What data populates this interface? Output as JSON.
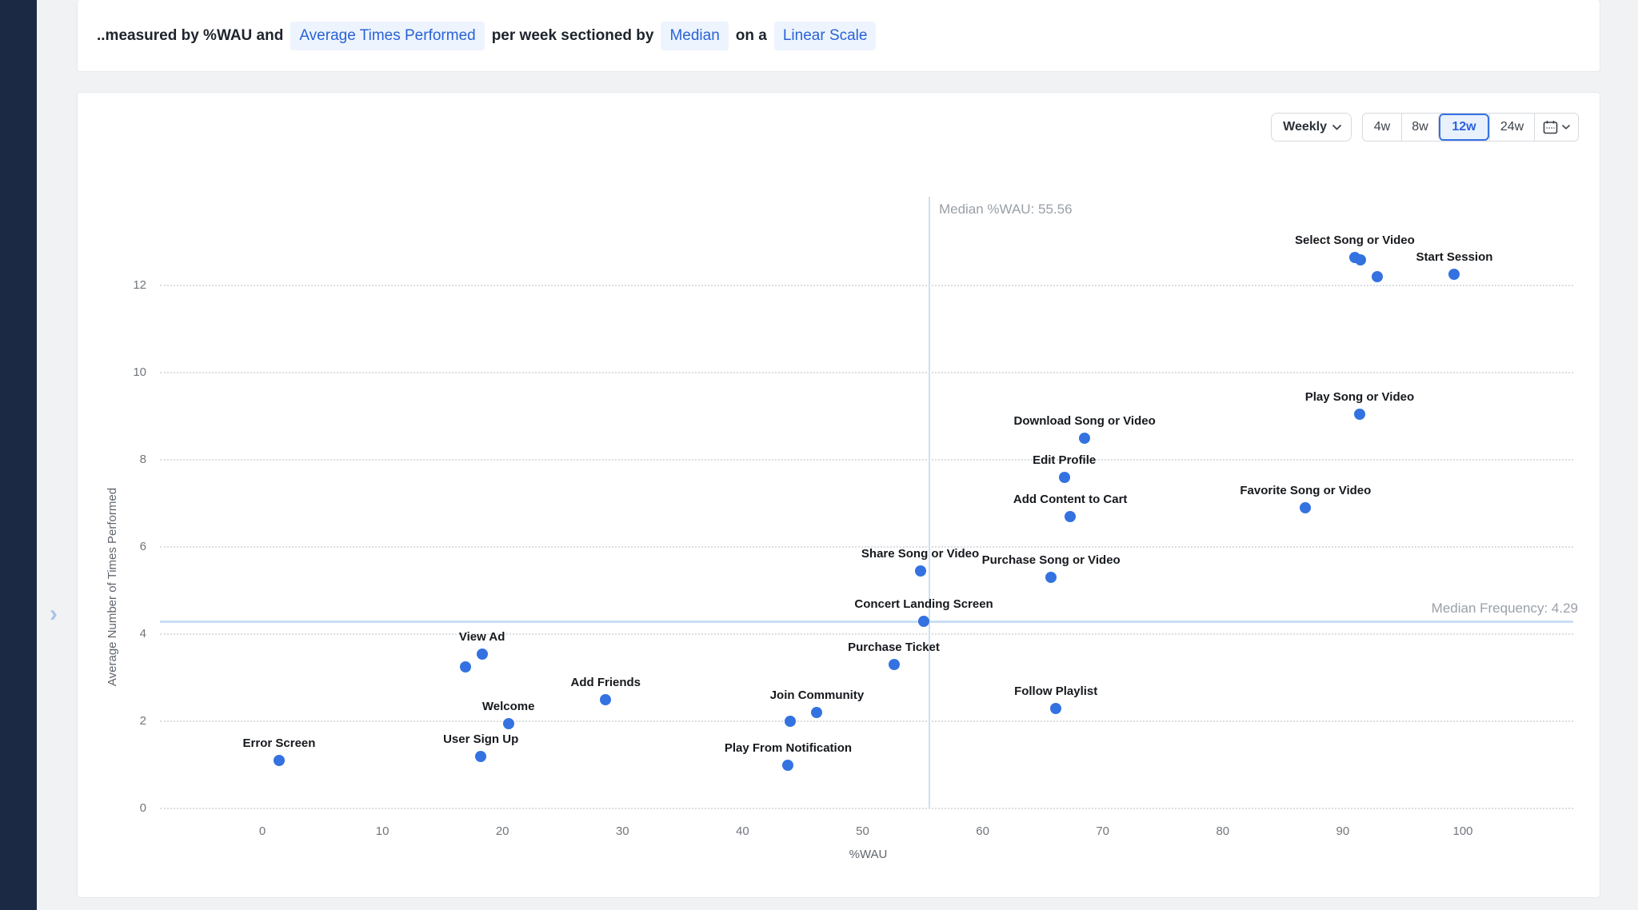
{
  "sidebar": {
    "expand_icon": "›"
  },
  "header": {
    "prefix": "..measured by %WAU and",
    "metric_pill": "Average Times Performed",
    "mid1": "per week sectioned by",
    "section_pill": "Median",
    "mid2": "on a",
    "scale_pill": "Linear Scale"
  },
  "controls": {
    "interval_label": "Weekly",
    "ranges": [
      "4w",
      "8w",
      "12w",
      "24w"
    ],
    "selected_range": "12w",
    "calendar_icon": "calendar"
  },
  "colors": {
    "sidebar_navy": "#1c2944",
    "page_background": "#f1f2f4",
    "dot_blue": "#3372e0",
    "pill_background": "#edf4fd",
    "pill_text": "#2a62d8",
    "selected_range_border": "#3471e3",
    "median_line_blue": "#c9def5",
    "gridline_gray": "#d9dde2"
  },
  "chart_data": {
    "type": "scatter",
    "xlabel": "%WAU",
    "ylabel": "Average Number of Times Performed",
    "x_ticks": [
      0,
      10,
      20,
      30,
      40,
      50,
      60,
      70,
      80,
      90,
      100
    ],
    "y_ticks": [
      0,
      2,
      4,
      6,
      8,
      10,
      12
    ],
    "xlim": [
      -12,
      109
    ],
    "ylim": [
      0,
      14
    ],
    "grid": "horizontal-dotted",
    "median_x": {
      "label": "Median %WAU: 55.56",
      "value": 55.56
    },
    "median_y": {
      "label": "Median Frequency: 4.29",
      "value": 4.29
    },
    "points": [
      {
        "label": "Select Song or Video",
        "x": 91.0,
        "y": 12.65
      },
      {
        "label": "",
        "x": 91.5,
        "y": 12.58
      },
      {
        "label": "",
        "x": 92.9,
        "y": 12.2
      },
      {
        "label": "Start Session",
        "x": 99.3,
        "y": 12.25
      },
      {
        "label": "Play Song or Video",
        "x": 91.4,
        "y": 9.05
      },
      {
        "label": "Download Song or Video",
        "x": 68.5,
        "y": 8.5
      },
      {
        "label": "Edit Profile",
        "x": 66.8,
        "y": 7.6
      },
      {
        "label": "Add Content to Cart",
        "x": 67.3,
        "y": 6.7
      },
      {
        "label": "Favorite Song or Video",
        "x": 86.9,
        "y": 6.9
      },
      {
        "label": "Share Song or Video",
        "x": 54.8,
        "y": 5.45
      },
      {
        "label": "Purchase Song or Video",
        "x": 65.7,
        "y": 5.3
      },
      {
        "label": "Concert Landing Screen",
        "x": 55.1,
        "y": 4.3
      },
      {
        "label": "Purchase Ticket",
        "x": 52.6,
        "y": 3.3
      },
      {
        "label": "View Ad",
        "x": 18.3,
        "y": 3.55
      },
      {
        "label": "",
        "x": 16.9,
        "y": 3.25
      },
      {
        "label": "Add Friends",
        "x": 28.6,
        "y": 2.5
      },
      {
        "label": "Follow Playlist",
        "x": 66.1,
        "y": 2.3
      },
      {
        "label": "Join Community",
        "x": 46.2,
        "y": 2.2
      },
      {
        "label": "",
        "x": 44.0,
        "y": 2.0
      },
      {
        "label": "Welcome",
        "x": 20.5,
        "y": 1.95
      },
      {
        "label": "User Sign Up",
        "x": 18.2,
        "y": 1.2
      },
      {
        "label": "Error Screen",
        "x": 1.4,
        "y": 1.1
      },
      {
        "label": "Play From Notification",
        "x": 43.8,
        "y": 1.0
      }
    ]
  }
}
